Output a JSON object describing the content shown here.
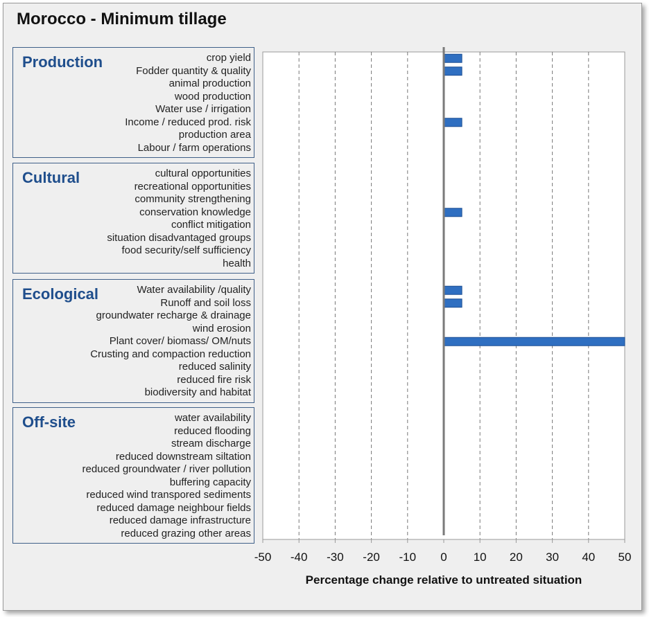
{
  "chart_data": {
    "type": "bar",
    "orientation": "horizontal",
    "title": "Morocco - Minimum tillage",
    "xlabel": "Percentage change relative to untreated situation",
    "ylabel": "",
    "xlim": [
      -50,
      50
    ],
    "xticks": [
      -50,
      -40,
      -30,
      -20,
      -10,
      0,
      10,
      20,
      30,
      40,
      50
    ],
    "grid": true,
    "bar_color": "#2f6fc1",
    "groups": [
      {
        "name": "Production",
        "categories": [
          "crop yield",
          "Fodder quantity & quality",
          "animal production",
          "wood production",
          "Water use / irrigation",
          "Income / reduced prod. risk",
          "production area",
          "Labour / farm operations"
        ],
        "values": [
          5,
          5,
          0,
          0,
          0,
          5,
          0,
          0
        ]
      },
      {
        "name": "Cultural",
        "categories": [
          "cultural opportunities",
          "recreational opportunities",
          "community strengthening",
          "conservation knowledge",
          "conflict mitigation",
          "situation disadvantaged groups",
          "food security/self sufficiency",
          "health"
        ],
        "values": [
          0,
          0,
          0,
          5,
          0,
          0,
          0,
          0
        ]
      },
      {
        "name": "Ecological",
        "categories": [
          "Water availability /quality",
          "Runoff and soil loss",
          "groundwater recharge & drainage",
          "wind erosion",
          "Plant cover/ biomass/ OM/nuts",
          "Crusting and compaction reduction",
          "reduced salinity",
          "reduced fire risk",
          "biodiversity and habitat"
        ],
        "values": [
          5,
          5,
          0,
          0,
          50,
          0,
          0,
          0,
          0
        ]
      },
      {
        "name": "Off-site",
        "categories": [
          "water availability",
          "reduced flooding",
          "stream discharge",
          "reduced downstream siltation",
          "reduced groundwater / river pollution",
          "buffering capacity",
          "reduced wind transpored sediments",
          "reduced damage neighbour fields",
          "reduced damage infrastructure",
          "reduced grazing other areas"
        ],
        "values": [
          0,
          0,
          0,
          0,
          0,
          0,
          0,
          0,
          0,
          0
        ]
      }
    ]
  }
}
